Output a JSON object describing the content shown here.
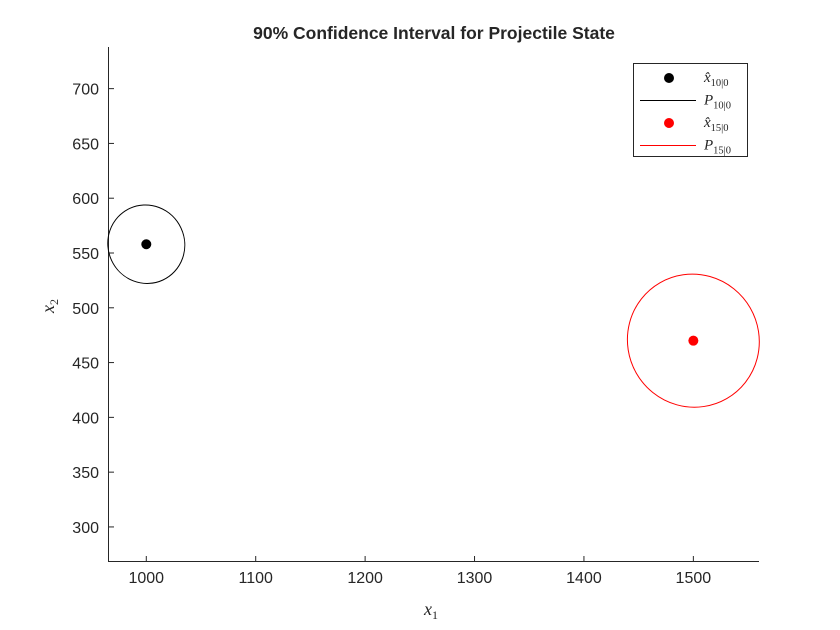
{
  "chart_data": {
    "type": "scatter",
    "title": "90% Confidence Interval for Projectile State",
    "xlabel": {
      "var": "x",
      "sub": "1"
    },
    "ylabel": {
      "var": "x",
      "sub": "2"
    },
    "xlim": [
      965,
      1560
    ],
    "ylim": [
      268,
      738
    ],
    "xticks": [
      1000,
      1100,
      1200,
      1300,
      1400,
      1500
    ],
    "yticks": [
      300,
      350,
      400,
      450,
      500,
      550,
      600,
      650,
      700
    ],
    "grid": false,
    "legend_position": "top-right",
    "series": [
      {
        "kind": "point",
        "legend": {
          "var": "x̂",
          "sub": "10|0"
        },
        "color": "#000000",
        "x": 1000,
        "y": 558
      },
      {
        "kind": "ellipse",
        "legend": {
          "var": "P",
          "sub": "10|0"
        },
        "color": "#000000",
        "center": [
          1000,
          558
        ],
        "rx": 35,
        "ry": 36,
        "rotation_deg": -25
      },
      {
        "kind": "point",
        "legend": {
          "var": "x̂",
          "sub": "15|0"
        },
        "color": "#ff0000",
        "x": 1500,
        "y": 470
      },
      {
        "kind": "ellipse",
        "legend": {
          "var": "P",
          "sub": "15|0"
        },
        "color": "#ff0000",
        "center": [
          1500,
          470
        ],
        "rx": 60,
        "ry": 61,
        "rotation_deg": -30
      }
    ]
  }
}
